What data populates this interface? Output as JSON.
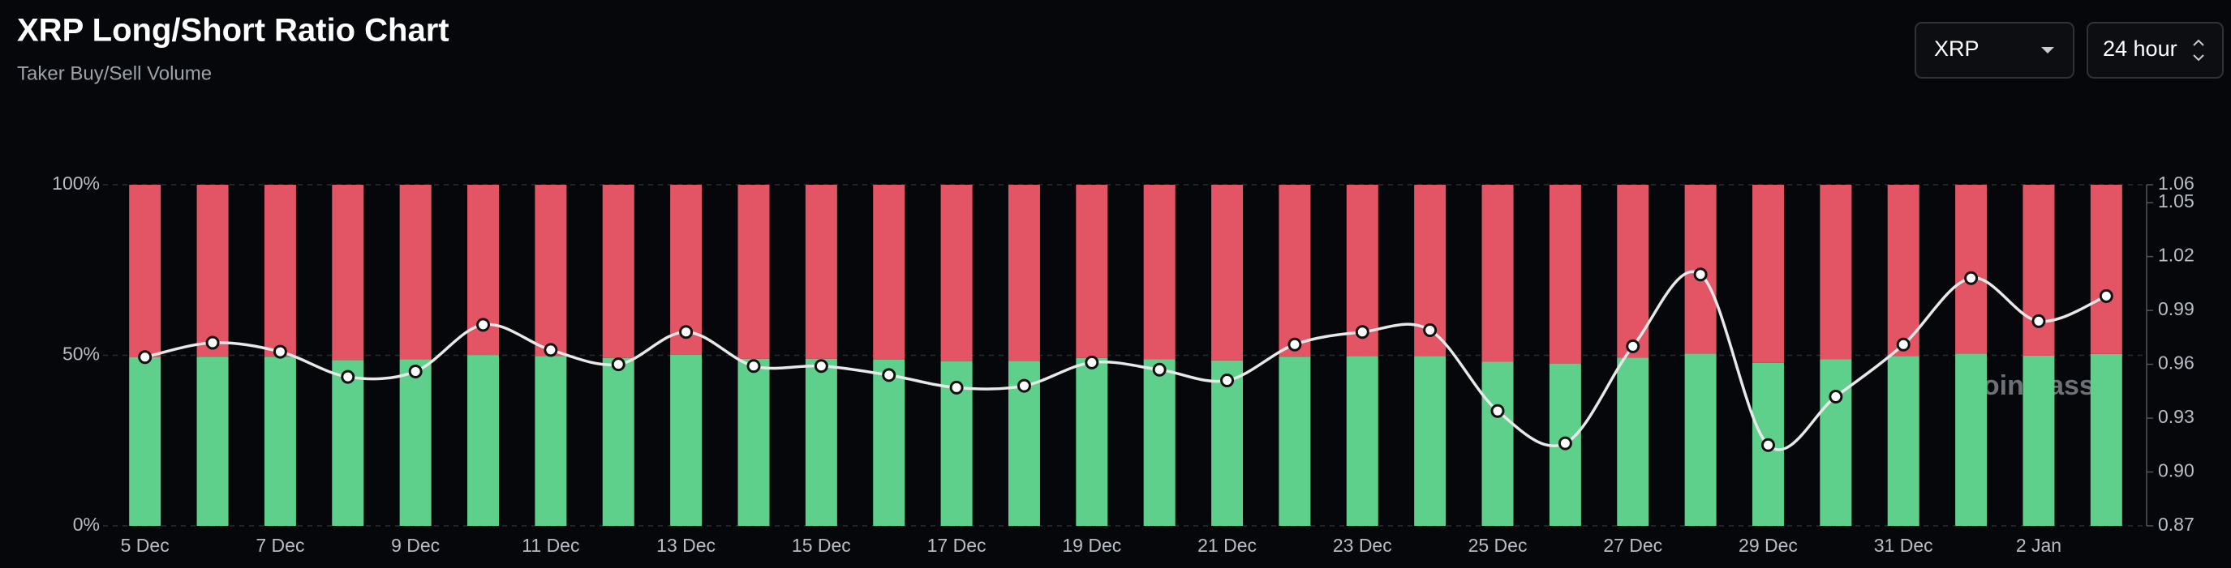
{
  "header": {
    "title": "XRP Long/Short Ratio Chart",
    "subtitle": "Taker Buy/Sell Volume"
  },
  "controls": {
    "symbol": "XRP",
    "interval": "24 hour"
  },
  "watermark": "coinglass",
  "chart_data": {
    "type": "bar_line",
    "categories": [
      "5 Dec",
      null,
      "7 Dec",
      null,
      "9 Dec",
      null,
      "11 Dec",
      null,
      "13 Dec",
      null,
      "15 Dec",
      null,
      "17 Dec",
      null,
      "19 Dec",
      null,
      "21 Dec",
      null,
      "23 Dec",
      null,
      "25 Dec",
      null,
      "27 Dec",
      null,
      "29 Dec",
      null,
      "31 Dec",
      null,
      "2 Jan",
      null
    ],
    "series": [
      {
        "color": "#5fcf8c",
        "values": [
          49.5,
          49.6,
          49.6,
          48.6,
          48.8,
          50.1,
          49.8,
          49.2,
          50.2,
          49.0,
          49.0,
          48.7,
          48.3,
          48.4,
          49.2,
          48.9,
          48.5,
          49.6,
          49.8,
          49.8,
          48.1,
          47.6,
          49.3,
          50.5,
          47.8,
          48.9,
          49.8,
          50.5,
          49.9,
          50.4
        ]
      },
      {
        "color": "#e35565",
        "values": [
          50.5,
          50.4,
          50.4,
          51.4,
          51.2,
          49.9,
          50.2,
          50.8,
          49.8,
          51.0,
          51.0,
          51.3,
          51.7,
          51.6,
          50.8,
          51.1,
          51.5,
          50.4,
          50.2,
          50.2,
          51.9,
          52.4,
          50.7,
          49.5,
          52.2,
          51.1,
          50.2,
          49.5,
          50.1,
          49.6
        ]
      },
      {
        "color": "#e8e8e8",
        "axis": "y2",
        "values": [
          0.964,
          0.972,
          0.967,
          0.953,
          0.956,
          0.982,
          0.968,
          0.96,
          0.978,
          0.959,
          0.959,
          0.954,
          0.947,
          0.948,
          0.961,
          0.957,
          0.951,
          0.971,
          0.978,
          0.979,
          0.934,
          0.916,
          0.97,
          1.01,
          0.915,
          0.942,
          0.971,
          1.008,
          0.984,
          0.998
        ]
      }
    ],
    "ylim": [
      0,
      100
    ],
    "yticks": [
      {
        "value": 0,
        "label": "0%"
      },
      {
        "value": 50,
        "label": "50%"
      },
      {
        "value": 100,
        "label": "100%"
      }
    ],
    "y2lim": [
      0.87,
      1.06
    ],
    "y2ticks": [
      0.87,
      {
        "value": 0.9,
        "label": "0.90"
      },
      0.93,
      0.96,
      0.99,
      1.02,
      1.05,
      1.06
    ],
    "grid": true
  }
}
